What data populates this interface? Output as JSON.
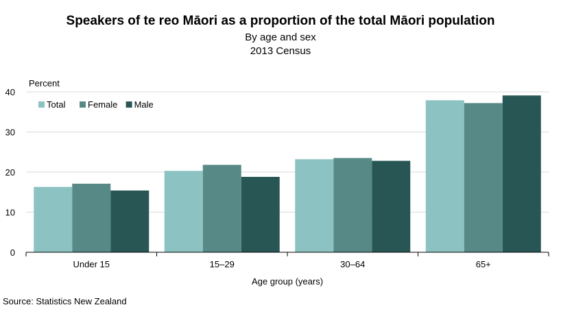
{
  "title": "Speakers of te reo Māori as a proportion of the total Māori population",
  "subtitle": "By age and sex",
  "subtitle2": "2013 Census",
  "source": "Source: Statistics New Zealand",
  "colors": {
    "Total": "#8cc3c2",
    "Female": "#578a87",
    "Male": "#285654",
    "grid": "#d9d9d9",
    "axis": "#000000"
  },
  "chart_data": {
    "type": "bar",
    "categories": [
      "Under 15",
      "15–29",
      "30–64",
      "65+"
    ],
    "series": [
      {
        "name": "Total",
        "values": [
          16.3,
          20.3,
          23.2,
          37.9
        ]
      },
      {
        "name": "Female",
        "values": [
          17.1,
          21.8,
          23.5,
          37.2
        ]
      },
      {
        "name": "Male",
        "values": [
          15.4,
          18.8,
          22.8,
          39.1
        ]
      }
    ],
    "xlabel": "Age group (years)",
    "ylabel": "Percent",
    "ylim": [
      0,
      40
    ],
    "yticks": [
      0,
      10,
      20,
      30,
      40
    ],
    "grid": true,
    "legend": "top-left"
  }
}
